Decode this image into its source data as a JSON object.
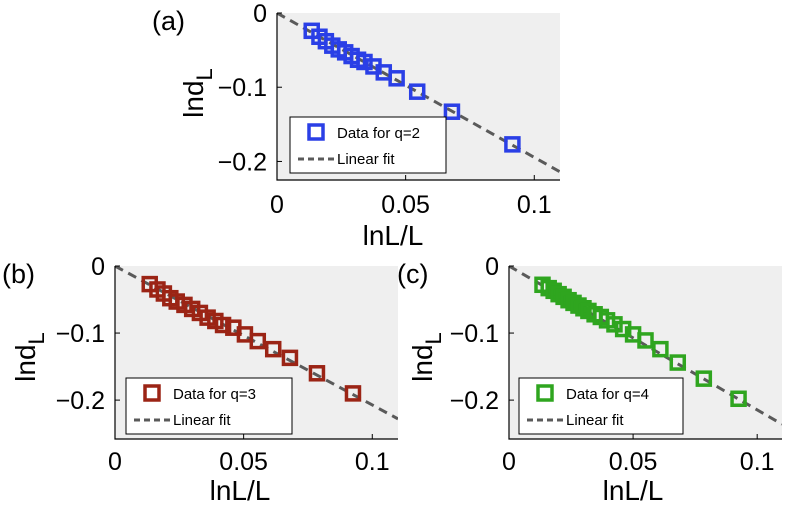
{
  "chart_data": [
    {
      "panel_label": "(a)",
      "type": "scatter",
      "xlabel": "lnL/L",
      "ylabel_main": "lnd",
      "ylabel_sub": "L",
      "xlim": [
        0,
        0.11
      ],
      "ylim": [
        -0.225,
        0
      ],
      "xticks": [
        0,
        0.05,
        0.1
      ],
      "xtick_labels": [
        "0",
        "0.05",
        "0.1"
      ],
      "yticks": [
        0,
        -0.1,
        -0.2
      ],
      "ytick_labels": [
        "0",
        "−0.1",
        "−0.2"
      ],
      "grid": false,
      "legend_position": "lower-left",
      "series": [
        {
          "name": "Data for q=2",
          "marker": "square",
          "color": "#2a3fe6",
          "x": [
            0.0135,
            0.0165,
            0.019,
            0.0215,
            0.024,
            0.0265,
            0.029,
            0.0315,
            0.034,
            0.0375,
            0.0415,
            0.0465,
            0.0545,
            0.068,
            0.0915
          ],
          "y": [
            -0.024,
            -0.032,
            -0.038,
            -0.044,
            -0.049,
            -0.053,
            -0.058,
            -0.063,
            -0.066,
            -0.072,
            -0.08,
            -0.088,
            -0.106,
            -0.133,
            -0.177
          ]
        },
        {
          "name": "Linear fit",
          "style": "dashed",
          "color": "#5a5a5a",
          "x": [
            0,
            0.11
          ],
          "y": [
            0,
            -0.214
          ]
        }
      ]
    },
    {
      "panel_label": "(b)",
      "type": "scatter",
      "xlabel": "lnL/L",
      "ylabel_main": "lnd",
      "ylabel_sub": "L",
      "xlim": [
        0,
        0.11
      ],
      "ylim": [
        -0.258,
        0
      ],
      "xticks": [
        0,
        0.05,
        0.1
      ],
      "xtick_labels": [
        "0",
        "0.05",
        "0.1"
      ],
      "yticks": [
        0,
        -0.1,
        -0.2
      ],
      "ytick_labels": [
        "0",
        "−0.1",
        "−0.2"
      ],
      "grid": false,
      "legend_position": "lower-left",
      "series": [
        {
          "name": "Data for q=3",
          "marker": "square",
          "color": "#9b2415",
          "x": [
            0.0135,
            0.0165,
            0.019,
            0.0215,
            0.024,
            0.027,
            0.03,
            0.033,
            0.036,
            0.039,
            0.042,
            0.046,
            0.0505,
            0.0555,
            0.0615,
            0.068,
            0.0785,
            0.0925
          ],
          "y": [
            -0.027,
            -0.035,
            -0.041,
            -0.048,
            -0.053,
            -0.058,
            -0.064,
            -0.07,
            -0.077,
            -0.082,
            -0.088,
            -0.092,
            -0.102,
            -0.112,
            -0.124,
            -0.137,
            -0.16,
            -0.19
          ]
        },
        {
          "name": "Linear fit",
          "style": "dashed",
          "color": "#5a5a5a",
          "x": [
            0,
            0.11
          ],
          "y": [
            0,
            -0.228
          ]
        }
      ]
    },
    {
      "panel_label": "(c)",
      "type": "scatter",
      "xlabel": "lnL/L",
      "ylabel_main": "lnd",
      "ylabel_sub": "L",
      "xlim": [
        0,
        0.11
      ],
      "ylim": [
        -0.258,
        0
      ],
      "xticks": [
        0,
        0.05,
        0.1
      ],
      "xtick_labels": [
        "0",
        "0.05",
        "0.1"
      ],
      "yticks": [
        0,
        -0.1,
        -0.2
      ],
      "ytick_labels": [
        "0",
        "−0.1",
        "−0.2"
      ],
      "grid": false,
      "legend_position": "lower-left",
      "series": [
        {
          "name": "Data for q=4",
          "marker": "square",
          "color": "#2fa51f",
          "x": [
            0.0135,
            0.016,
            0.018,
            0.02,
            0.022,
            0.024,
            0.026,
            0.028,
            0.03,
            0.032,
            0.0345,
            0.037,
            0.0395,
            0.0425,
            0.046,
            0.05,
            0.055,
            0.061,
            0.068,
            0.0785,
            0.0925
          ],
          "y": [
            -0.028,
            -0.033,
            -0.037,
            -0.042,
            -0.046,
            -0.051,
            -0.055,
            -0.059,
            -0.063,
            -0.067,
            -0.072,
            -0.076,
            -0.081,
            -0.087,
            -0.094,
            -0.102,
            -0.111,
            -0.124,
            -0.144,
            -0.168,
            -0.198
          ]
        },
        {
          "name": "Linear fit",
          "style": "dashed",
          "color": "#5a5a5a",
          "x": [
            0,
            0.11
          ],
          "y": [
            0,
            -0.236
          ]
        }
      ]
    }
  ]
}
